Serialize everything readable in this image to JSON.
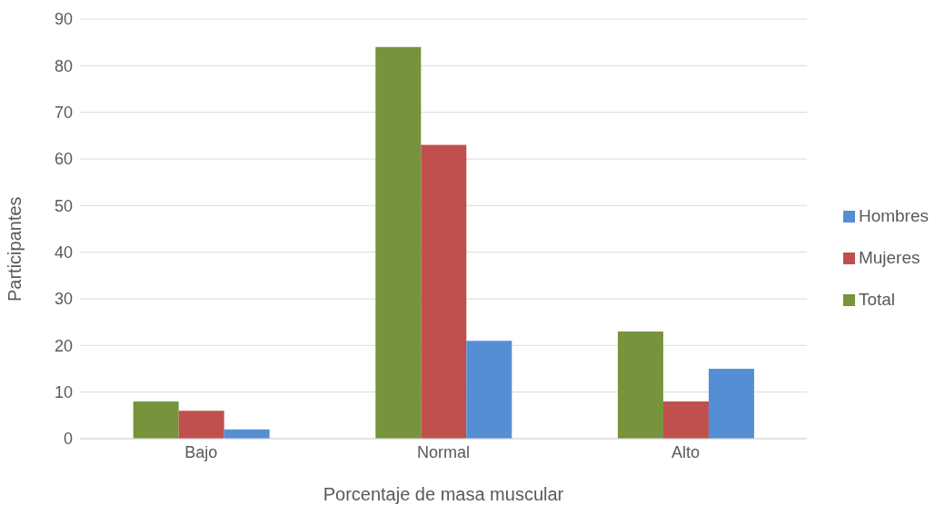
{
  "chart_data": {
    "type": "bar",
    "xlabel": "Porcentaje de masa muscular",
    "ylabel": "Participantes",
    "categories": [
      "Bajo",
      "Normal",
      "Alto"
    ],
    "series": [
      {
        "name": "Total",
        "color": "#77933c",
        "values": [
          8,
          84,
          23
        ]
      },
      {
        "name": "Mujeres",
        "color": "#c0504d",
        "values": [
          6,
          63,
          8
        ]
      },
      {
        "name": "Hombres",
        "color": "#558ed5",
        "values": [
          2,
          21,
          15
        ]
      }
    ],
    "ylim": [
      0,
      90
    ],
    "yticks": [
      0,
      10,
      20,
      30,
      40,
      50,
      60,
      70,
      80,
      90
    ],
    "grid": "y",
    "legend": "right"
  }
}
